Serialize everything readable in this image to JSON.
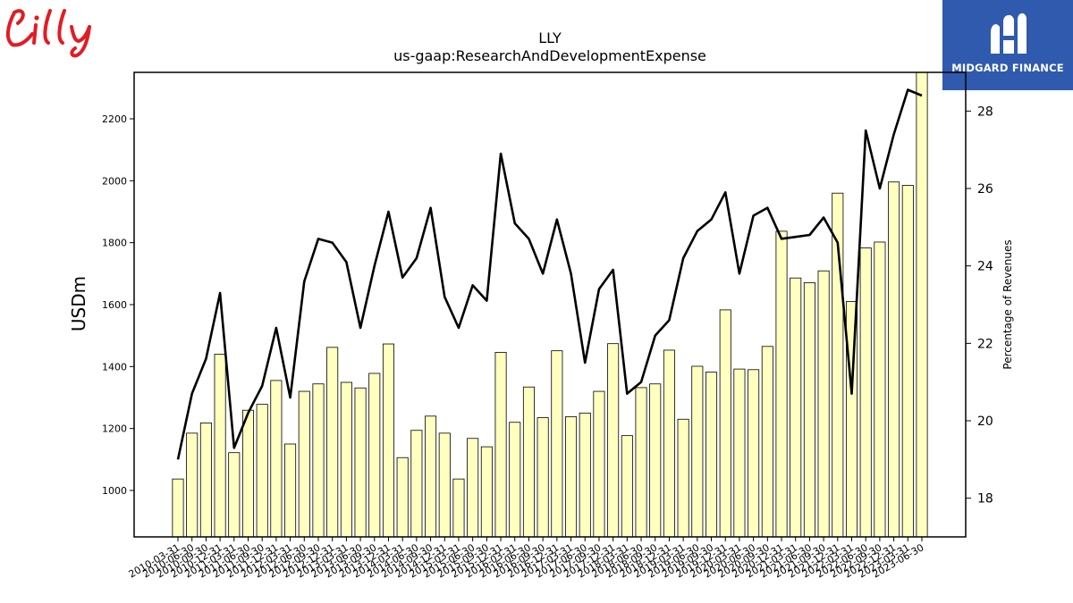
{
  "logos": {
    "left": {
      "text": "Lilly",
      "color": "#e31b23"
    },
    "right": {
      "text": "MIDGARD FINANCE",
      "background": "#2f5aae"
    }
  },
  "chart_data": {
    "type": "bar",
    "title": "LLY",
    "subtitle": "us-gaap:ResearchAndDevelopmentExpense",
    "ylabel": "USDm",
    "y2label": "Percentage of Revenues",
    "ylim": [
      850,
      2350
    ],
    "y2lim": [
      17,
      29
    ],
    "yticks": [
      1000,
      1200,
      1400,
      1600,
      1800,
      2000,
      2200
    ],
    "y2ticks": [
      18,
      20,
      22,
      24,
      26,
      28
    ],
    "bar_color": "#ffffc0",
    "line_color": "#000000",
    "categories": [
      "2010-03-31",
      "2010-06-30",
      "2010-09-30",
      "2010-12-31",
      "2011-03-31",
      "2011-06-30",
      "2011-09-30",
      "2011-12-31",
      "2012-03-31",
      "2012-06-30",
      "2012-09-30",
      "2012-12-31",
      "2013-03-31",
      "2013-06-30",
      "2013-09-30",
      "2013-12-31",
      "2014-03-31",
      "2014-06-30",
      "2014-09-30",
      "2014-12-31",
      "2015-03-31",
      "2015-06-30",
      "2015-09-30",
      "2015-12-31",
      "2016-03-31",
      "2016-06-30",
      "2016-09-30",
      "2016-12-31",
      "2017-03-31",
      "2017-06-30",
      "2017-09-30",
      "2017-12-31",
      "2018-03-31",
      "2018-06-30",
      "2018-09-30",
      "2018-12-31",
      "2019-03-31",
      "2019-06-30",
      "2019-09-30",
      "2019-12-31",
      "2020-03-31",
      "2020-06-30",
      "2020-09-30",
      "2020-12-31",
      "2021-03-31",
      "2021-06-30",
      "2021-09-30",
      "2021-12-31",
      "2022-03-31",
      "2022-06-30",
      "2022-09-30",
      "2022-12-31",
      "2023-03-31",
      "2023-06-30"
    ],
    "series": [
      {
        "type": "bar",
        "axis": "left",
        "values": [
          1037,
          1185,
          1218,
          1440,
          1122,
          1259,
          1278,
          1355,
          1150,
          1320,
          1344,
          1462,
          1349,
          1331,
          1378,
          1473,
          1106,
          1194,
          1240,
          1185,
          1037,
          1168,
          1141,
          1446,
          1220,
          1334,
          1235,
          1451,
          1238,
          1250,
          1320,
          1474,
          1177,
          1332,
          1344,
          1453,
          1230,
          1401,
          1382,
          1583,
          1392,
          1390,
          1465,
          1837,
          1686,
          1671,
          1709,
          1960,
          1610,
          1783,
          1802,
          1996,
          1985,
          2350
        ]
      },
      {
        "type": "line",
        "axis": "right",
        "values": [
          19.0,
          20.7,
          21.6,
          23.3,
          19.3,
          20.2,
          20.9,
          22.4,
          20.6,
          23.6,
          24.7,
          24.6,
          24.1,
          22.4,
          24.0,
          25.4,
          23.7,
          24.2,
          25.5,
          23.2,
          22.4,
          23.5,
          23.1,
          26.9,
          25.1,
          24.7,
          23.8,
          25.2,
          23.8,
          21.5,
          23.4,
          23.9,
          20.7,
          21.0,
          22.2,
          22.6,
          24.2,
          24.9,
          25.2,
          25.9,
          23.8,
          25.3,
          25.5,
          24.7,
          24.75,
          24.8,
          25.25,
          24.6,
          20.7,
          27.5,
          26.0,
          27.4,
          28.55,
          28.4
        ]
      }
    ]
  }
}
